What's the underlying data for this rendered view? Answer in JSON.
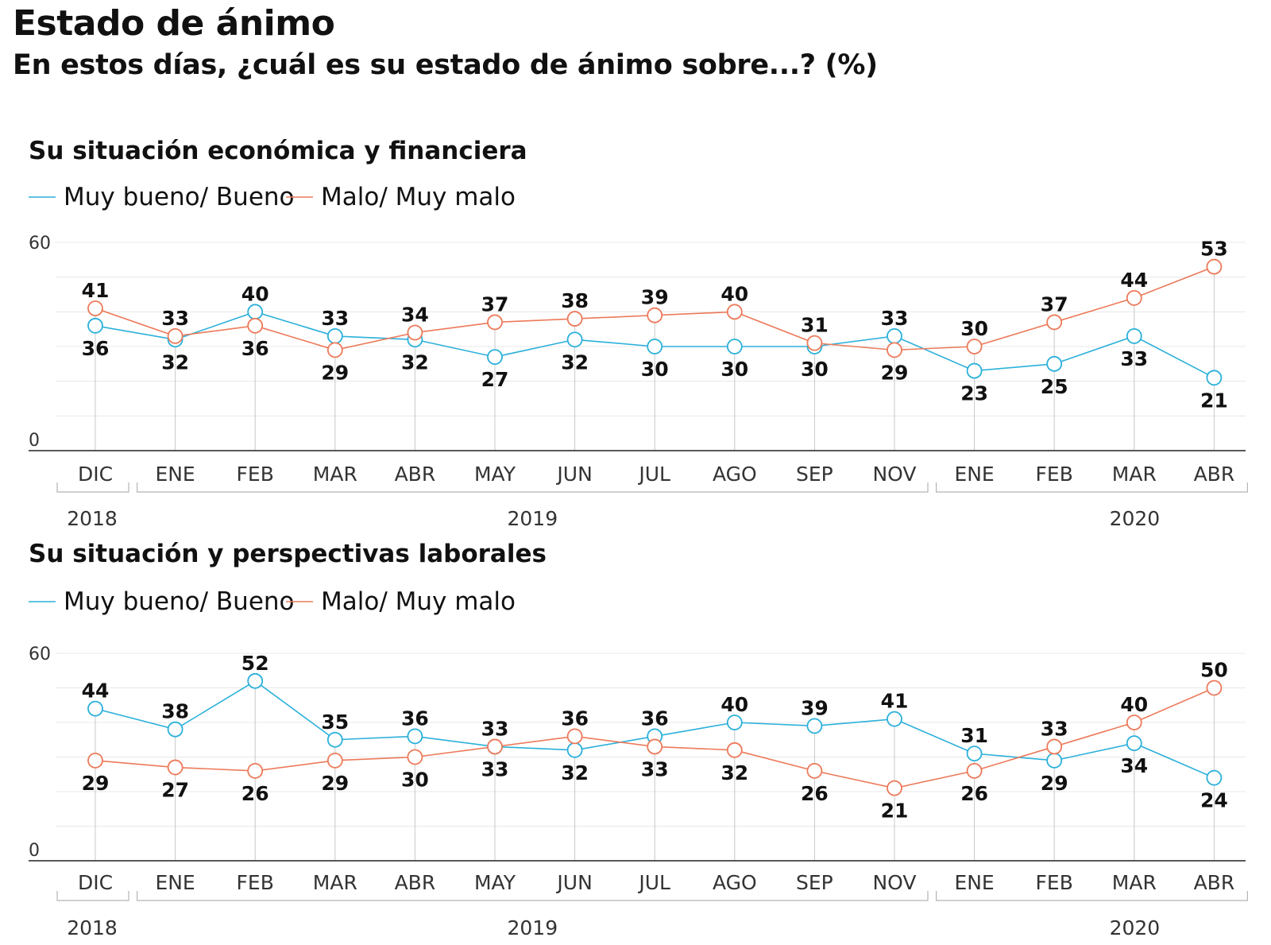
{
  "header": {
    "title": "Estado de ánimo",
    "subtitle": "En estos días, ¿cuál es su estado de ánimo sobre...? (%)"
  },
  "colors": {
    "series_blue": "#2bb0da",
    "series_orange": "#ec7a5a",
    "text": "#111111",
    "axis_label": "#333333",
    "grid": "#e8e8e8"
  },
  "chart_data": [
    {
      "type": "line",
      "title": "Su situación económica y financiera",
      "categories": [
        "DIC",
        "ENE",
        "FEB",
        "MAR",
        "ABR",
        "MAY",
        "JUN",
        "JUL",
        "AGO",
        "SEP",
        "NOV",
        "ENE",
        "FEB",
        "MAR",
        "ABR"
      ],
      "year_groups": [
        {
          "label": "2018",
          "from": 0,
          "to": 0
        },
        {
          "label": "2019",
          "from": 1,
          "to": 10
        },
        {
          "label": "2020",
          "from": 11,
          "to": 14
        }
      ],
      "ylim": [
        0,
        60
      ],
      "yticks": [
        0,
        60
      ],
      "grid": true,
      "legend_position": "top-left",
      "series": [
        {
          "name": "Muy bueno/ Bueno",
          "color": "#2bb0da",
          "values": [
            36,
            32,
            40,
            33,
            32,
            27,
            32,
            30,
            30,
            30,
            33,
            23,
            25,
            33,
            21
          ]
        },
        {
          "name": "Malo/ Muy malo",
          "color": "#ec7a5a",
          "values": [
            41,
            33,
            36,
            29,
            34,
            37,
            38,
            39,
            40,
            31,
            29,
            30,
            37,
            44,
            53
          ]
        }
      ]
    },
    {
      "type": "line",
      "title": "Su situación y perspectivas laborales",
      "categories": [
        "DIC",
        "ENE",
        "FEB",
        "MAR",
        "ABR",
        "MAY",
        "JUN",
        "JUL",
        "AGO",
        "SEP",
        "NOV",
        "ENE",
        "FEB",
        "MAR",
        "ABR"
      ],
      "year_groups": [
        {
          "label": "2018",
          "from": 0,
          "to": 0
        },
        {
          "label": "2019",
          "from": 1,
          "to": 10
        },
        {
          "label": "2020",
          "from": 11,
          "to": 14
        }
      ],
      "ylim": [
        0,
        60
      ],
      "yticks": [
        0,
        60
      ],
      "grid": true,
      "legend_position": "top-left",
      "series": [
        {
          "name": "Muy bueno/ Bueno",
          "color": "#2bb0da",
          "values": [
            44,
            38,
            52,
            35,
            36,
            33,
            32,
            36,
            40,
            39,
            41,
            31,
            29,
            34,
            24
          ]
        },
        {
          "name": "Malo/ Muy malo",
          "color": "#ec7a5a",
          "values": [
            29,
            27,
            26,
            29,
            30,
            33,
            36,
            33,
            32,
            26,
            21,
            26,
            33,
            40,
            50
          ]
        }
      ]
    }
  ]
}
